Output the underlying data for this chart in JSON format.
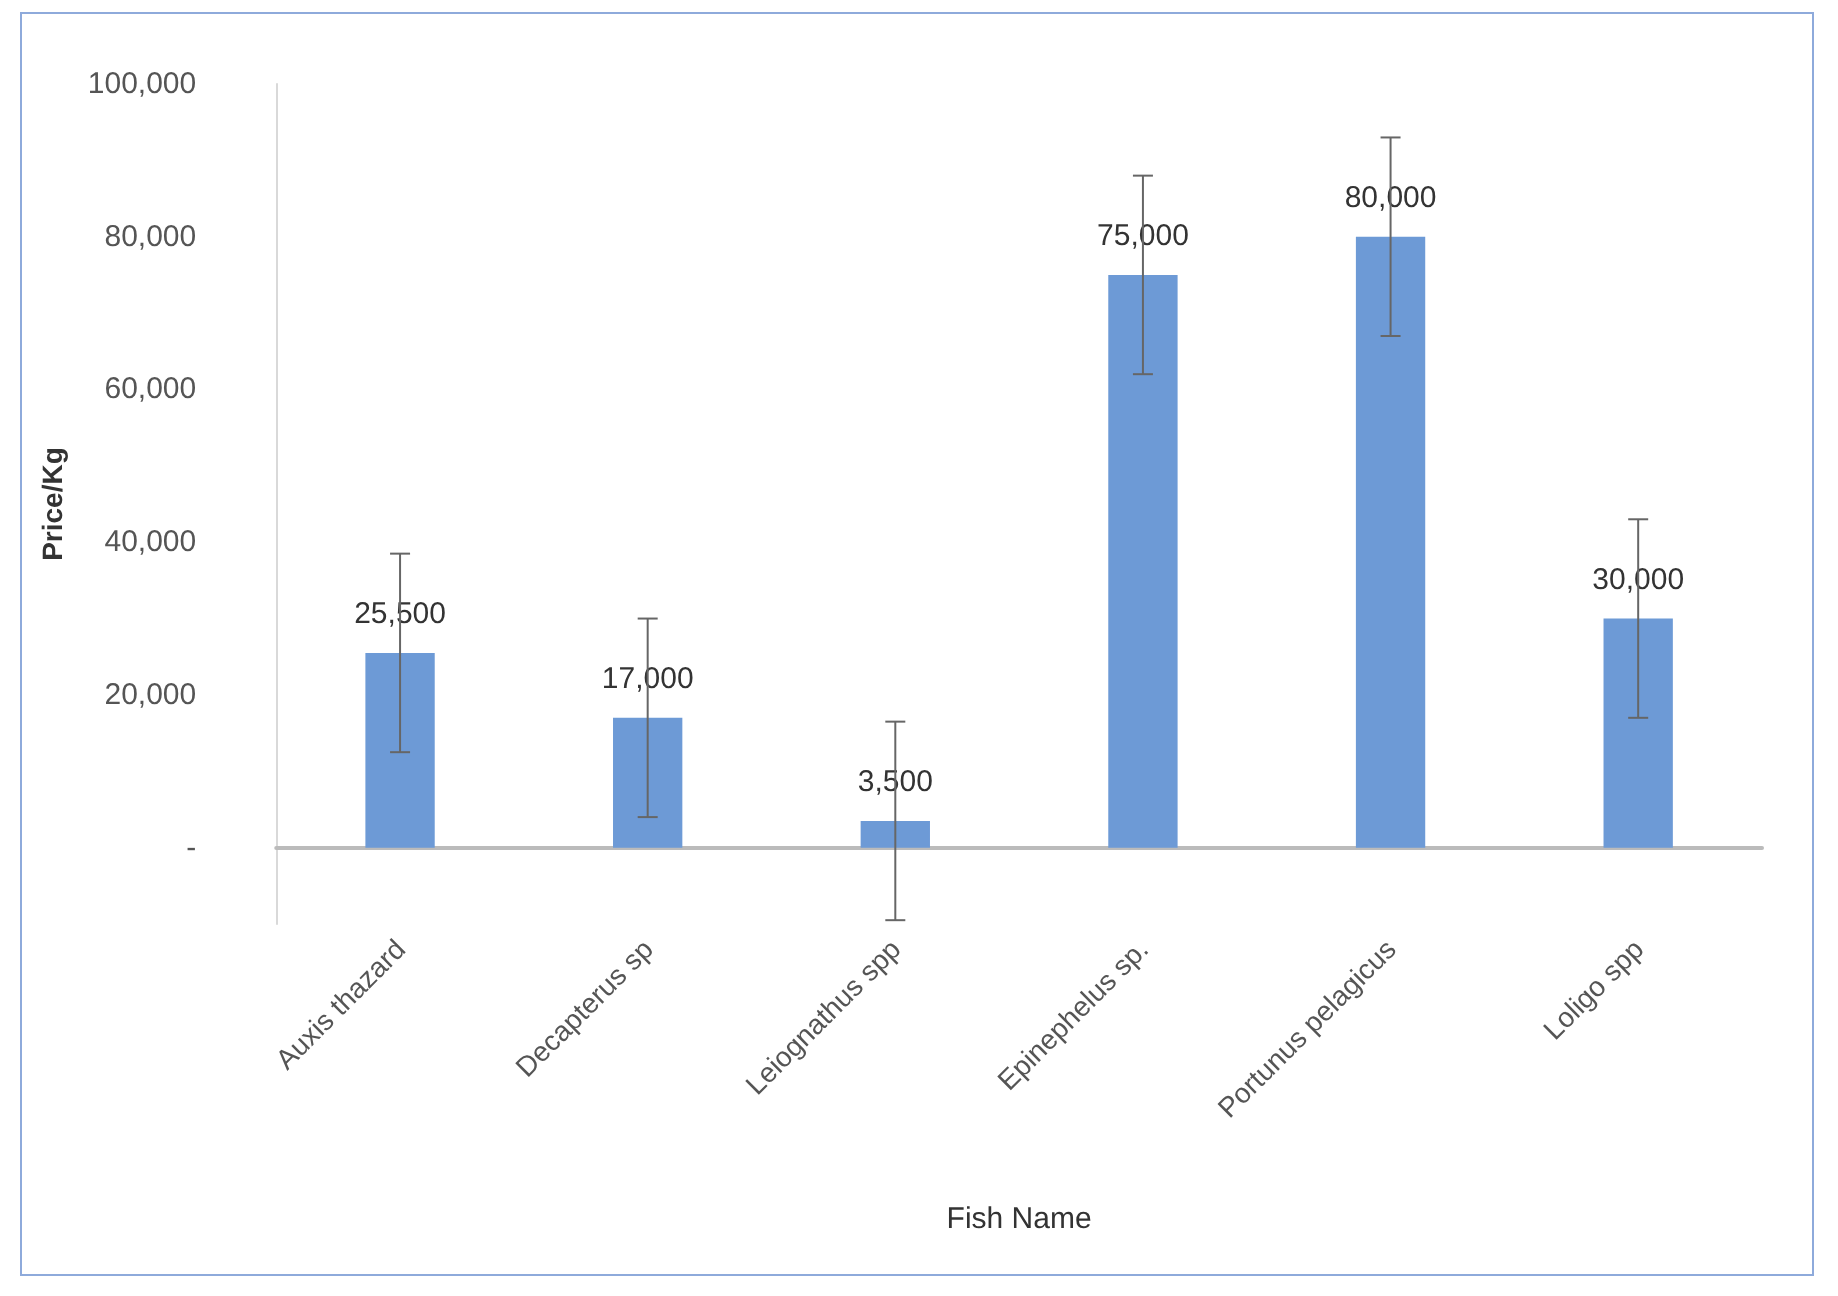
{
  "chart_data": {
    "type": "bar",
    "xlabel": "Fish Name",
    "ylabel": "Price/Kg",
    "categories": [
      "Auxis thazard",
      "Decapterus sp",
      "Leiognathus spp",
      "Epinephelus sp.",
      "Portunus pelagicus",
      "Loligo spp"
    ],
    "values": [
      25500,
      17000,
      3500,
      75000,
      80000,
      30000
    ],
    "errors": [
      13000,
      13000,
      13000,
      13000,
      13000,
      13000
    ],
    "value_labels": [
      "25,500",
      "17,000",
      "3,500",
      "75,000",
      "80,000",
      "30,000"
    ],
    "color": "#6d9ad6",
    "ylim": [
      -10000,
      100000
    ],
    "yticks": [
      {
        "value": 0,
        "label": "-"
      },
      {
        "value": 20000,
        "label": "20,000"
      },
      {
        "value": 40000,
        "label": "40,000"
      },
      {
        "value": 60000,
        "label": "60,000"
      },
      {
        "value": 80000,
        "label": "80,000"
      },
      {
        "value": 100000,
        "label": "100,000"
      }
    ]
  }
}
